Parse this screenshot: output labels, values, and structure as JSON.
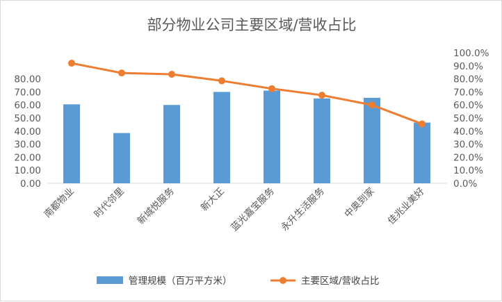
{
  "chart_data": {
    "type": "bar",
    "title": "部分物业公司主要区域/营收占比",
    "categories": [
      "南都物业",
      "时代邻里",
      "新城悦服务",
      "新大正",
      "蓝光嘉宝服务",
      "永升生活服务",
      "中奥到家",
      "佳兆业美好"
    ],
    "series": [
      {
        "name": "管理规模（百万平方米）",
        "type": "bar",
        "axis": "left",
        "color": "#5b9bd5",
        "values": [
          60.5,
          38.5,
          60.0,
          70.0,
          71.0,
          65.0,
          65.5,
          46.5
        ]
      },
      {
        "name": "主要区域/营收占比",
        "type": "line",
        "axis": "right",
        "color": "#ed7d31",
        "values": [
          92.0,
          84.5,
          83.5,
          78.5,
          72.5,
          67.5,
          60.0,
          45.5
        ]
      }
    ],
    "y_left": {
      "ylim": [
        0,
        100
      ],
      "ticks": [
        "0.00",
        "10.00",
        "20.00",
        "30.00",
        "40.00",
        "50.00",
        "60.00",
        "70.00",
        "80.00"
      ]
    },
    "y_right": {
      "ylim": [
        0,
        100
      ],
      "ticks": [
        "0.0%",
        "10.0%",
        "20.0%",
        "30.0%",
        "40.0%",
        "50.0%",
        "60.0%",
        "70.0%",
        "80.0%",
        "90.0%",
        "100.0%"
      ]
    },
    "legend": "bottom",
    "grid": false
  }
}
